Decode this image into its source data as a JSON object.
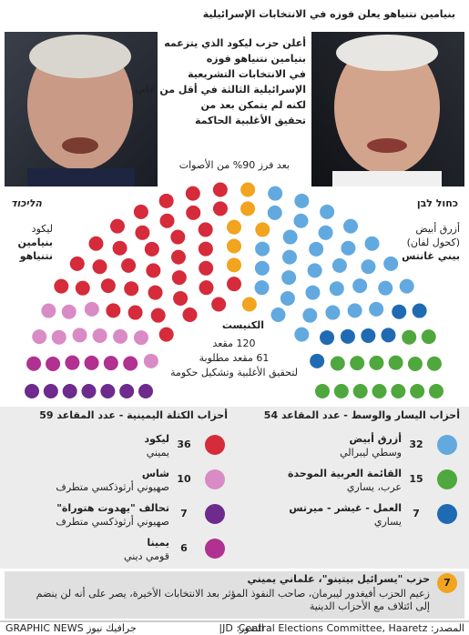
{
  "header": {
    "title": "بنيامين نتنياهو يعلن فوزه في الانتخابات الإسرائيلية"
  },
  "intro": [
    "أعلن حزب ليكود الذي يتزعمه",
    "بنيامين نتنياهو فوزه",
    "في الانتخابات التشريعية",
    "الإسرائيلية الثالثة في أقل من عام،",
    "لكنه لم يتمكن بعد من",
    "تحقيق الأغلبية الحاكمة"
  ],
  "count_note": "بعد فرز 90% من الأصوات",
  "left_leader": {
    "logo": "הליכוד",
    "lines": [
      "ليكود",
      "بنيامين",
      "نتنياهو"
    ]
  },
  "right_leader": {
    "logo": "כחול לבן",
    "lines": [
      "أزرق أبيض",
      "(كحول لفان)",
      "بيني غانتس"
    ]
  },
  "chart_data": {
    "type": "parliament",
    "title": "الكنيست",
    "notes": [
      "120 مقعد",
      "61 مقعد مطلوبة",
      "لتحقيق الأغلبية وتشكيل حكومة"
    ],
    "blocs": [
      {
        "title": "أحزاب الكتلة اليمينية - عدد المقاعد 59",
        "series": [
          {
            "name": "ليكود",
            "description": "يميني",
            "color": "#d52b3a",
            "value": 36
          },
          {
            "name": "شاس",
            "description": "صهيوني أرثوذكسي متطرف",
            "color": "#d98bc6",
            "value": 10
          },
          {
            "name": "تحالف \"يهدوت هتوراة\"",
            "description": "صهيوني أرثوذكسي متطرف",
            "color": "#6e2a8c",
            "value": 7
          },
          {
            "name": "يمينا",
            "description": "قومي ديني",
            "color": "#b0318f",
            "value": 6
          }
        ]
      },
      {
        "title": "أحزاب اليسار والوسط - عدد المقاعد 54",
        "series": [
          {
            "name": "أزرق أبيض",
            "description": "وسطي ليبرالي",
            "color": "#62a9e0",
            "value": 32
          },
          {
            "name": "القائمة العربية الموحدة",
            "description": "عرب، يساري",
            "color": "#4fa83d",
            "value": 15
          },
          {
            "name": "العمل - غيشر - ميرتس",
            "description": "يساري",
            "color": "#1f6bb3",
            "value": 7
          }
        ]
      }
    ],
    "other": {
      "name": "حزب \"يسرائيل بيتينو\"، علماني يميني",
      "description": [
        "زعيم الحزب أفيغدور ليبرمان، صاحب النفوذ المؤثر بعد الانتخابات الأخيرة، يصر على أنه لن ينضم",
        "إلى ائتلاف مع الأحزاب الدينية"
      ],
      "color": "#f2a41f",
      "value": 7
    }
  },
  "footer": {
    "source": "المصدر: Central Elections Committee, Haaretz",
    "photos": "الصور: JD|",
    "credit": "GRAPHIC NEWS جرافيك نيوز"
  }
}
